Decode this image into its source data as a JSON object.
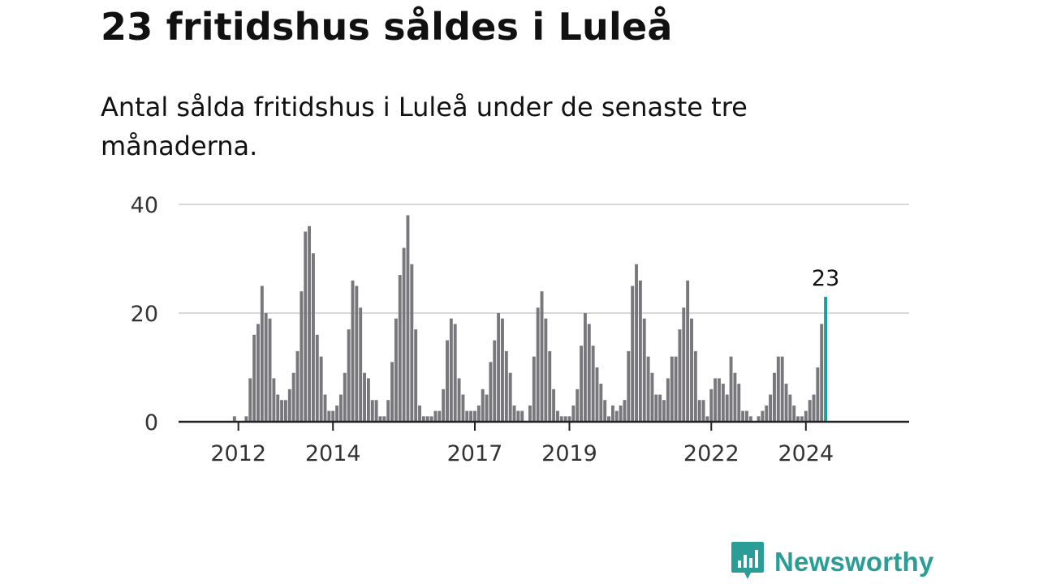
{
  "title": "23 fritidshus såldes i Luleå",
  "subtitle": "Antal sålda fritidshus i Luleå under de senaste tre månaderna.",
  "brand": {
    "name": "Newsworthy",
    "logo_icon": "newsworthy-logo-icon"
  },
  "colors": {
    "bar": "#77777c",
    "highlight": "#1a9e98",
    "grid": "#d9d9d9",
    "axis": "#222222",
    "brand": "#2a9d96"
  },
  "chart_data": {
    "type": "bar",
    "title": "23 fritidshus såldes i Luleå",
    "subtitle": "Antal sålda fritidshus i Luleå under de senaste tre månaderna.",
    "xlabel": "",
    "ylabel": "",
    "ylim": [
      0,
      40
    ],
    "yticks": [
      "0",
      "20",
      "40"
    ],
    "xticks": [
      {
        "label": "2012",
        "year": 2012
      },
      {
        "label": "2014",
        "year": 2014
      },
      {
        "label": "2017",
        "year": 2017
      },
      {
        "label": "2019",
        "year": 2019
      },
      {
        "label": "2022",
        "year": 2022
      },
      {
        "label": "2024",
        "year": 2024
      }
    ],
    "start": {
      "year": 2011,
      "month": 6
    },
    "grid": true,
    "highlight_label": "23",
    "values": [
      0,
      0,
      0,
      0,
      0,
      0,
      1,
      0,
      0,
      1,
      8,
      16,
      18,
      25,
      20,
      19,
      8,
      5,
      4,
      4,
      6,
      9,
      13,
      24,
      35,
      36,
      31,
      16,
      12,
      5,
      2,
      2,
      3,
      5,
      9,
      17,
      26,
      25,
      21,
      9,
      8,
      4,
      4,
      1,
      1,
      4,
      11,
      19,
      27,
      32,
      38,
      29,
      17,
      3,
      1,
      1,
      1,
      2,
      2,
      6,
      15,
      19,
      18,
      8,
      5,
      2,
      2,
      2,
      3,
      6,
      5,
      11,
      15,
      20,
      19,
      13,
      9,
      3,
      2,
      2,
      0,
      3,
      12,
      21,
      24,
      19,
      13,
      6,
      2,
      1,
      1,
      1,
      3,
      6,
      14,
      20,
      18,
      14,
      10,
      7,
      4,
      1,
      3,
      2,
      3,
      4,
      13,
      25,
      29,
      26,
      19,
      12,
      9,
      5,
      5,
      4,
      8,
      12,
      12,
      17,
      21,
      26,
      19,
      13,
      4,
      4,
      1,
      6,
      8,
      8,
      7,
      5,
      12,
      9,
      7,
      2,
      2,
      1,
      0,
      1,
      2,
      3,
      5,
      9,
      12,
      12,
      7,
      5,
      3,
      1,
      1,
      2,
      4,
      5,
      10,
      18,
      23
    ]
  }
}
